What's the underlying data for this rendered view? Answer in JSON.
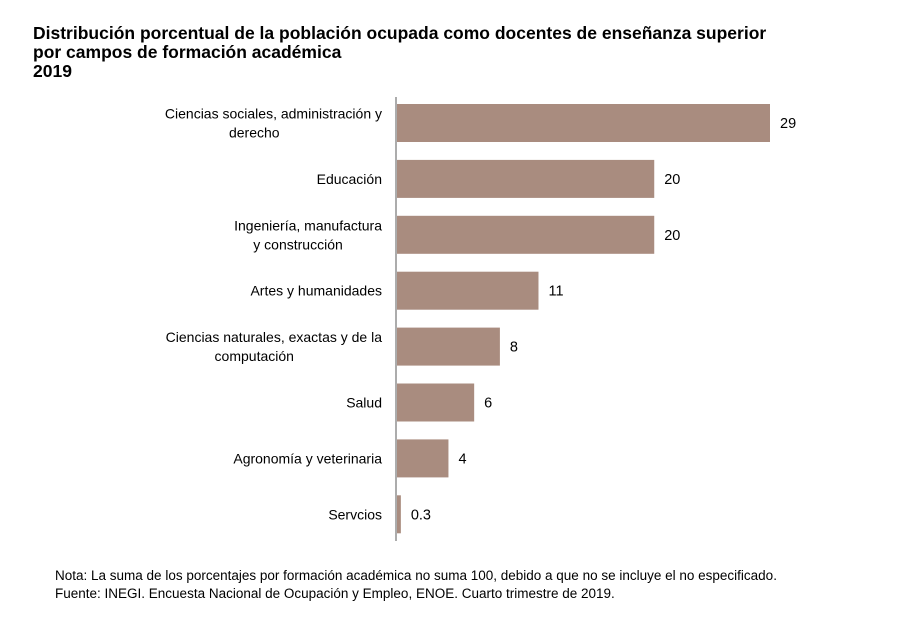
{
  "chart_data": {
    "type": "bar",
    "orientation": "horizontal",
    "title": [
      "Distribución porcentual de la población ocupada como docentes de enseñanza superior",
      "por campos de formación académica",
      "2019"
    ],
    "categories": [
      [
        "Ciencias sociales, administración y",
        "derecho"
      ],
      [
        "Educación"
      ],
      [
        "Ingeniería, manufactura",
        "y construcción"
      ],
      [
        "Artes y humanidades"
      ],
      [
        "Ciencias naturales, exactas y de la",
        "computación"
      ],
      [
        "Salud"
      ],
      [
        "Agronomía y veterinaria"
      ],
      [
        "Servcios"
      ]
    ],
    "values": [
      29,
      20,
      20,
      11,
      8,
      6,
      4,
      0.3
    ],
    "value_labels": [
      "29",
      "20",
      "20",
      "11",
      "8",
      "6",
      "4",
      "0.3"
    ],
    "xlim": [
      0,
      29
    ],
    "grid": false,
    "bar_color": "#a98c7f",
    "axis_color": "#808080"
  },
  "notes": {
    "nota": "Nota: La suma de los porcentajes por formación académica no suma 100, debido a que no se incluye el no especificado.",
    "fuente": "Fuente: INEGI. Encuesta Nacional de Ocupación y Empleo, ENOE. Cuarto trimestre de 2019."
  }
}
